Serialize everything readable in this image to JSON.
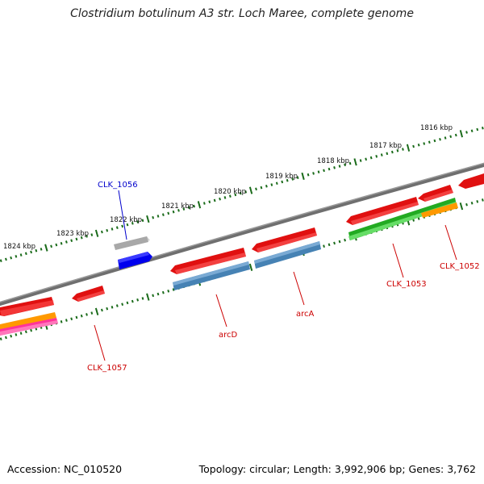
{
  "header": {
    "title": "Clostridium botulinum A3 str. Loch Maree, complete genome"
  },
  "footer": {
    "accession": "Accession: NC_010520",
    "topology": "Topology: circular; Length: 3,992,906 bp; Genes: 3,762"
  },
  "ruler": {
    "labels": [
      "1816 kbp",
      "1817 kbp",
      "1818 kbp",
      "1819 kbp",
      "1820 kbp",
      "1821 kbp",
      "1822 kbp",
      "1823 kbp",
      "1824 kbp"
    ],
    "tick_color": "#1a6b1a"
  },
  "backbone": {
    "color": "#777777"
  },
  "gene_labels": [
    {
      "text": "CLK_1056",
      "color": "#0000cc"
    },
    {
      "text": "CLK_1052",
      "color": "#cc0000"
    },
    {
      "text": "CLK_1053",
      "color": "#cc0000"
    },
    {
      "text": "arcA",
      "color": "#cc0000"
    },
    {
      "text": "arcD",
      "color": "#cc0000"
    },
    {
      "text": "CLK_1057",
      "color": "#cc0000"
    }
  ],
  "feature_colors": {
    "cds_red": "#ee1111",
    "gene_blue_grey": "#4682b4",
    "gene_green": "#33cc33",
    "gene_grey": "#aaaaaa",
    "gene_blue": "#0000ff",
    "orange": "#ff9900",
    "pink": "#ff3399"
  }
}
